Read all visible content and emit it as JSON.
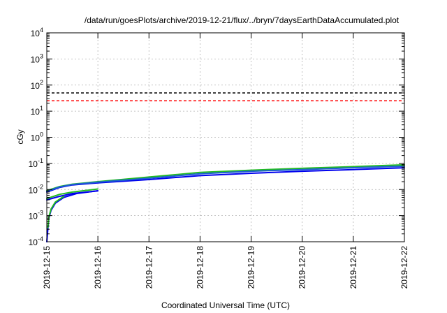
{
  "chart_data": {
    "type": "line",
    "title": "/data/run/goesPlots/archive/2019-12-21/flux/../bryn/7daysEarthDataAccumulated.plot",
    "xlabel": "Coordinated Universal Time (UTC)",
    "ylabel": "cGy",
    "xlim": [
      "2019-12-15",
      "2019-12-22"
    ],
    "ylim": [
      0.0001,
      10000
    ],
    "yscale": "log",
    "grid": true,
    "x_tick_labels": [
      "2019-12-15",
      "2019-12-16",
      "2019-12-17",
      "2019-12-18",
      "2019-12-19",
      "2019-12-20",
      "2019-12-21",
      "2019-12-22"
    ],
    "y_ticks": [
      {
        "base": "10",
        "exp": "-4"
      },
      {
        "base": "10",
        "exp": "-3"
      },
      {
        "base": "10",
        "exp": "-2"
      },
      {
        "base": "10",
        "exp": "-1"
      },
      {
        "base": "10",
        "exp": "0"
      },
      {
        "base": "10",
        "exp": "1"
      },
      {
        "base": "10",
        "exp": "2"
      },
      {
        "base": "10",
        "exp": "3"
      },
      {
        "base": "10",
        "exp": "4"
      }
    ],
    "threshold_lines": [
      {
        "value": 50,
        "color": "#000000",
        "style": "dashed"
      },
      {
        "value": 25,
        "color": "#ff0000",
        "style": "dashed"
      }
    ],
    "series": [
      {
        "color": "#22bb22",
        "x": [
          "2019-12-15",
          "2019-12-15T06:00",
          "2019-12-15T12:00",
          "2019-12-16",
          "2019-12-17",
          "2019-12-18",
          "2019-12-19",
          "2019-12-20",
          "2019-12-21",
          "2019-12-22"
        ],
        "values": [
          0.009,
          0.013,
          0.016,
          0.02,
          0.03,
          0.045,
          0.055,
          0.065,
          0.075,
          0.088
        ]
      },
      {
        "color": "#0000ee",
        "x": [
          "2019-12-15",
          "2019-12-15T06:00",
          "2019-12-15T12:00",
          "2019-12-16",
          "2019-12-17",
          "2019-12-18",
          "2019-12-19",
          "2019-12-20",
          "2019-12-21",
          "2019-12-22"
        ],
        "values": [
          0.008,
          0.012,
          0.015,
          0.018,
          0.024,
          0.034,
          0.042,
          0.05,
          0.058,
          0.068
        ]
      },
      {
        "color": "#1e5fd0",
        "x": [
          "2019-12-15",
          "2019-12-15T06:00",
          "2019-12-15T12:00",
          "2019-12-16",
          "2019-12-17",
          "2019-12-18",
          "2019-12-19",
          "2019-12-20",
          "2019-12-21",
          "2019-12-22"
        ],
        "values": [
          0.0085,
          0.0125,
          0.0155,
          0.019,
          0.027,
          0.04,
          0.05,
          0.058,
          0.068,
          0.078
        ]
      },
      {
        "color": "#22bb22",
        "x": [
          "2019-12-15",
          "2019-12-15T06:00",
          "2019-12-15T12:00",
          "2019-12-16"
        ],
        "values": [
          0.0045,
          0.0065,
          0.008,
          0.0105
        ]
      },
      {
        "color": "#0000ee",
        "x": [
          "2019-12-15",
          "2019-12-15T06:00",
          "2019-12-15T12:00",
          "2019-12-16"
        ],
        "values": [
          0.004,
          0.0055,
          0.007,
          0.0088
        ]
      },
      {
        "color": "#0000ee",
        "x": [
          "2019-12-15",
          "2019-12-15T00:30",
          "2019-12-15T01:00",
          "2019-12-15T02:00",
          "2019-12-15T04:00",
          "2019-12-15T08:00",
          "2019-12-15T14:00",
          "2019-12-16"
        ],
        "values": [
          0.0001,
          0.0003,
          0.0008,
          0.0016,
          0.003,
          0.005,
          0.007,
          0.009
        ]
      },
      {
        "color": "#22bb22",
        "x": [
          "2019-12-15T00:30",
          "2019-12-15T01:00",
          "2019-12-15T02:00",
          "2019-12-15T04:00",
          "2019-12-15T08:00"
        ],
        "values": [
          0.00035,
          0.0009,
          0.0018,
          0.0033,
          0.0055
        ]
      }
    ]
  }
}
